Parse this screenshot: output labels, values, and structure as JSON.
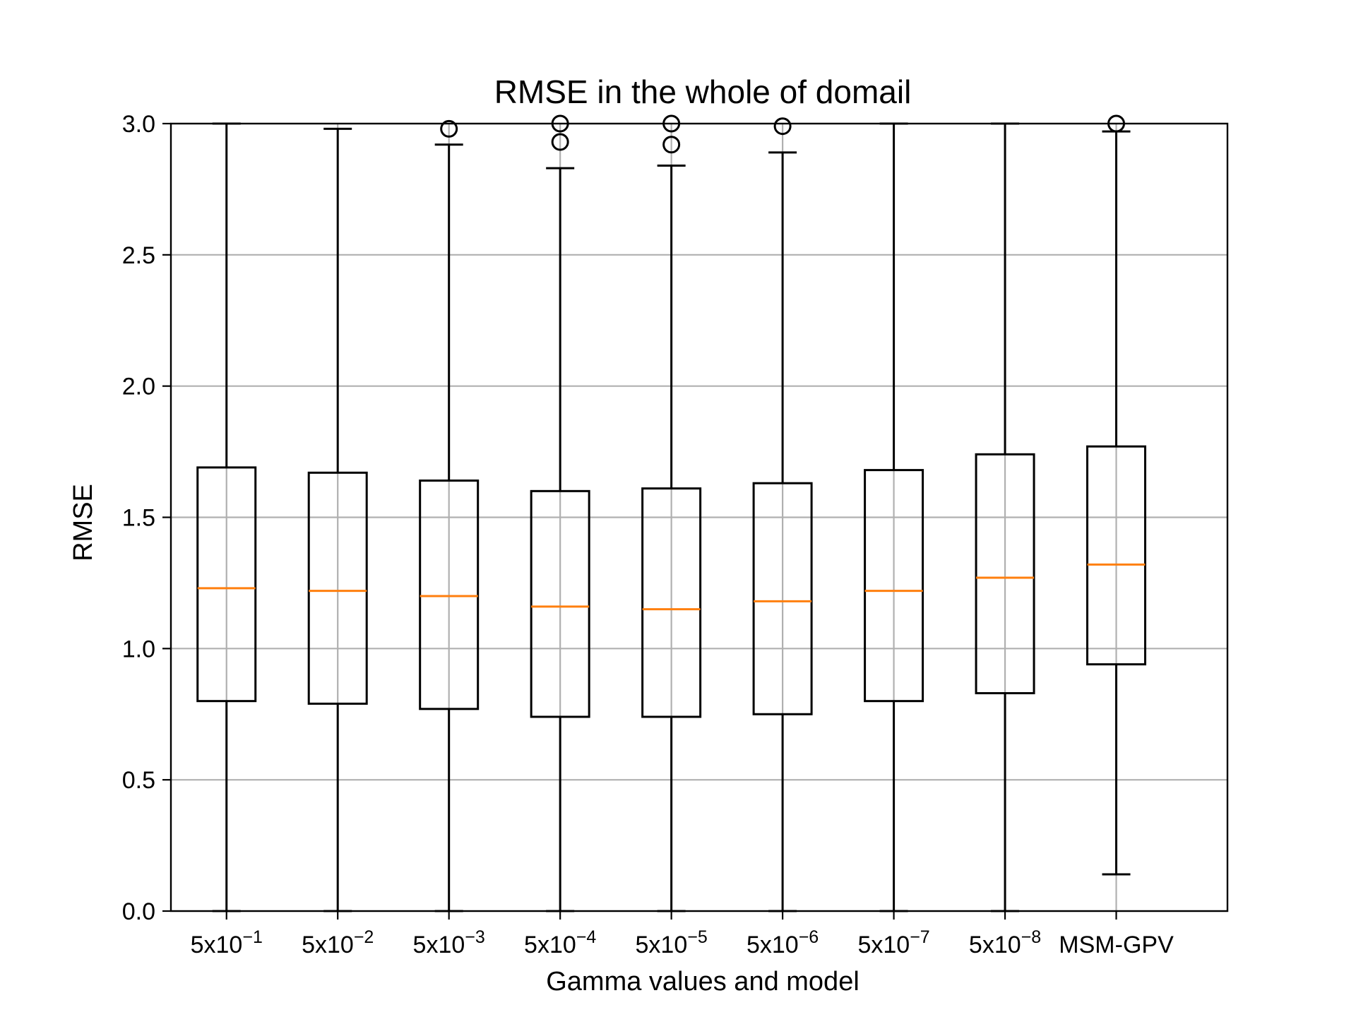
{
  "chart_data": {
    "type": "box",
    "title": "RMSE in the whole of domail",
    "xlabel": "Gamma values and model",
    "ylabel": "RMSE",
    "ylim": [
      0,
      3.0
    ],
    "yticks": [
      "0.0",
      "0.5",
      "1.0",
      "1.5",
      "2.0",
      "2.5",
      "3.0"
    ],
    "ytick_values": [
      0,
      0.5,
      1.0,
      1.5,
      2.0,
      2.5,
      3.0
    ],
    "grid": true,
    "colors": {
      "box": "#000000",
      "median": "#ff7f0e",
      "grid": "#b0b0b0"
    },
    "categories": [
      {
        "base": "5x10",
        "exp": "−1"
      },
      {
        "base": "5x10",
        "exp": "−2"
      },
      {
        "base": "5x10",
        "exp": "−3"
      },
      {
        "base": "5x10",
        "exp": "−4"
      },
      {
        "base": "5x10",
        "exp": "−5"
      },
      {
        "base": "5x10",
        "exp": "−6"
      },
      {
        "base": "5x10",
        "exp": "−7"
      },
      {
        "base": "5x10",
        "exp": "−8"
      },
      {
        "base": "MSM-GPV",
        "exp": ""
      }
    ],
    "boxes": [
      {
        "whislo": 0.0,
        "q1": 0.8,
        "med": 1.23,
        "q3": 1.69,
        "whishi": 3.0,
        "fliers": []
      },
      {
        "whislo": 0.0,
        "q1": 0.79,
        "med": 1.22,
        "q3": 1.67,
        "whishi": 2.98,
        "fliers": []
      },
      {
        "whislo": 0.0,
        "q1": 0.77,
        "med": 1.2,
        "q3": 1.64,
        "whishi": 2.92,
        "fliers": [
          2.98
        ]
      },
      {
        "whislo": 0.0,
        "q1": 0.74,
        "med": 1.16,
        "q3": 1.6,
        "whishi": 2.83,
        "fliers": [
          2.93,
          3.0
        ]
      },
      {
        "whislo": 0.0,
        "q1": 0.74,
        "med": 1.15,
        "q3": 1.61,
        "whishi": 2.84,
        "fliers": [
          2.92,
          3.0
        ]
      },
      {
        "whislo": 0.0,
        "q1": 0.75,
        "med": 1.18,
        "q3": 1.63,
        "whishi": 2.89,
        "fliers": [
          2.99
        ]
      },
      {
        "whislo": 0.0,
        "q1": 0.8,
        "med": 1.22,
        "q3": 1.68,
        "whishi": 3.0,
        "fliers": []
      },
      {
        "whislo": 0.0,
        "q1": 0.83,
        "med": 1.27,
        "q3": 1.74,
        "whishi": 3.0,
        "fliers": []
      },
      {
        "whislo": 0.14,
        "q1": 0.94,
        "med": 1.32,
        "q3": 1.77,
        "whishi": 2.97,
        "fliers": [
          3.0
        ]
      }
    ]
  }
}
